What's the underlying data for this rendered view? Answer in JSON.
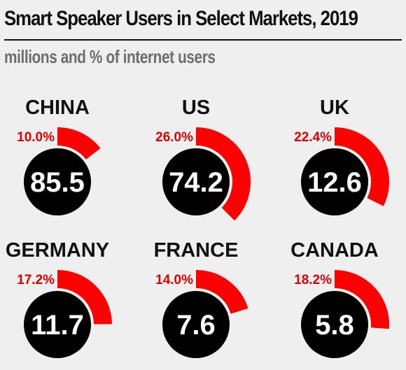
{
  "title": "Smart Speaker Users in Select Markets, 2019",
  "subtitle": "millions and % of internet users",
  "colors": {
    "arc": "#ff0000",
    "percent_text": "#e00000",
    "disc": "#000000",
    "value_text": "#ffffff"
  },
  "chart_data": {
    "type": "radial-gauge",
    "title": "Smart Speaker Users in Select Markets, 2019",
    "subtitle": "millions and % of internet users",
    "markets": [
      {
        "country": "CHINA",
        "users_millions": 85.5,
        "users_label": "85.5",
        "pct_internet_users": 10.0,
        "pct_label": "10.0%"
      },
      {
        "country": "US",
        "users_millions": 74.2,
        "users_label": "74.2",
        "pct_internet_users": 26.0,
        "pct_label": "26.0%"
      },
      {
        "country": "UK",
        "users_millions": 12.6,
        "users_label": "12.6",
        "pct_internet_users": 22.4,
        "pct_label": "22.4%"
      },
      {
        "country": "GERMANY",
        "users_millions": 11.7,
        "users_label": "11.7",
        "pct_internet_users": 17.2,
        "pct_label": "17.2%"
      },
      {
        "country": "FRANCE",
        "users_millions": 7.6,
        "users_label": "7.6",
        "pct_internet_users": 14.0,
        "pct_label": "14.0%"
      },
      {
        "country": "CANADA",
        "users_millions": 5.8,
        "users_label": "5.8",
        "pct_internet_users": 18.2,
        "pct_label": "18.2%"
      }
    ]
  }
}
